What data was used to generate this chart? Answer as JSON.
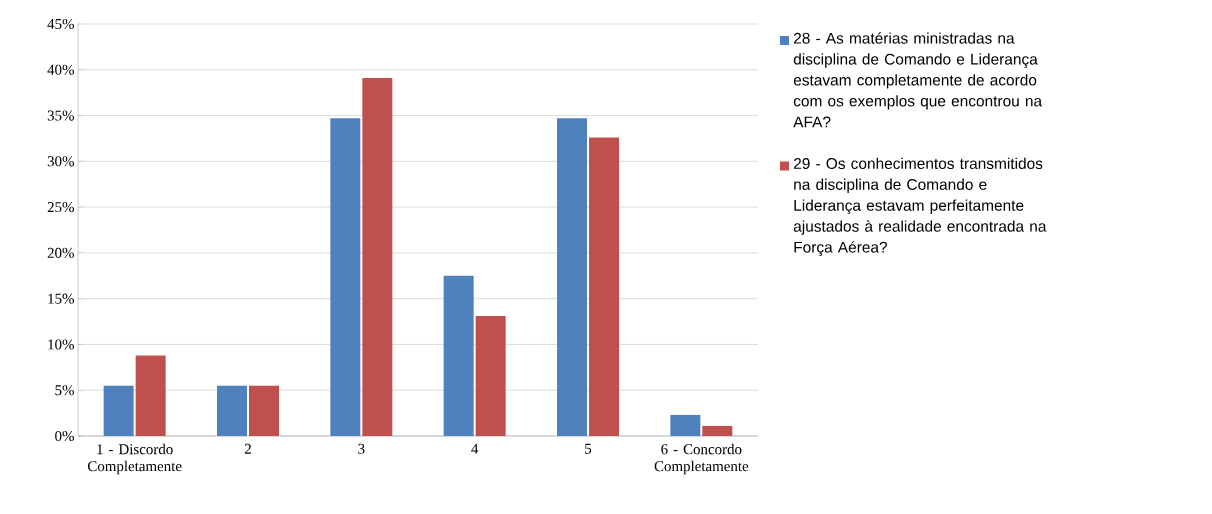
{
  "chart_data": {
    "type": "bar",
    "categories": [
      "1 - Discordo Completamente",
      "2",
      "3",
      "4",
      "5",
      "6 - Concordo Completamente"
    ],
    "series": [
      {
        "name": "28 - As matérias ministradas na disciplina de Comando e Liderança estavam completamente de acordo com os exemplos que encontrou na AFA?",
        "color": "#4f81bd",
        "values": [
          5.5,
          5.5,
          34.7,
          17.5,
          34.7,
          2.3
        ]
      },
      {
        "name": "29 - Os conhecimentos transmitidos na disciplina de Comando e Liderança estavam perfeitamente ajustados à realidade encontrada na Força Aérea?",
        "color": "#c0504d",
        "values": [
          8.8,
          5.5,
          39.1,
          13.1,
          32.6,
          1.1
        ]
      }
    ],
    "ylim": [
      0,
      45
    ],
    "yticks": [
      {
        "value": 0,
        "label": "0%"
      },
      {
        "value": 5,
        "label": "5%"
      },
      {
        "value": 10,
        "label": "10%"
      },
      {
        "value": 15,
        "label": "15%"
      },
      {
        "value": 20,
        "label": "20%"
      },
      {
        "value": 25,
        "label": "25%"
      },
      {
        "value": 30,
        "label": "30%"
      },
      {
        "value": 35,
        "label": "35%"
      },
      {
        "value": 40,
        "label": "40%"
      },
      {
        "value": 45,
        "label": "45%"
      }
    ],
    "grid": "y",
    "legend": "right"
  }
}
